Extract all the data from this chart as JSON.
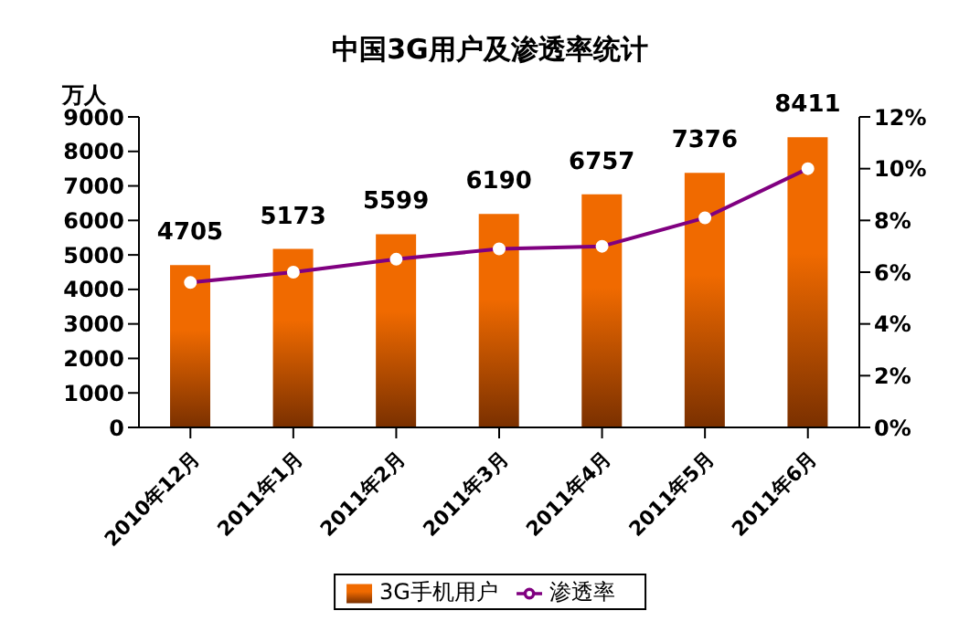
{
  "chart_data": {
    "type": "bar",
    "title": "中国3G用户及渗透率统计",
    "ylabel": "万人",
    "categories": [
      "2010年12月",
      "2011年1月",
      "2011年2月",
      "2011年3月",
      "2011年4月",
      "2011年5月",
      "2011年6月"
    ],
    "series": [
      {
        "name": "3G手机用户",
        "color": "#f06a00",
        "values": [
          4705,
          5173,
          5599,
          6190,
          6757,
          7376,
          8411
        ],
        "data_labels": true
      },
      {
        "name": "渗透率",
        "type": "line",
        "axis": "y2",
        "color": "#800080",
        "marker": "circle",
        "values": [
          5.6,
          6.0,
          6.5,
          6.9,
          7.0,
          8.1,
          10.0
        ]
      }
    ],
    "ylim": [
      0,
      9000
    ],
    "yticks": [
      0,
      1000,
      2000,
      3000,
      4000,
      5000,
      6000,
      7000,
      8000,
      9000
    ],
    "y2lim": [
      0,
      12
    ],
    "y2ticks": [
      {
        "value": 0,
        "label": "0%"
      },
      {
        "value": 2,
        "label": "2%"
      },
      {
        "value": 4,
        "label": "4%"
      },
      {
        "value": 6,
        "label": "6%"
      },
      {
        "value": 8,
        "label": "8%"
      },
      {
        "value": 10,
        "label": "10%"
      },
      {
        "value": 12,
        "label": "12%"
      }
    ],
    "grid": false,
    "legend": "bottom"
  }
}
